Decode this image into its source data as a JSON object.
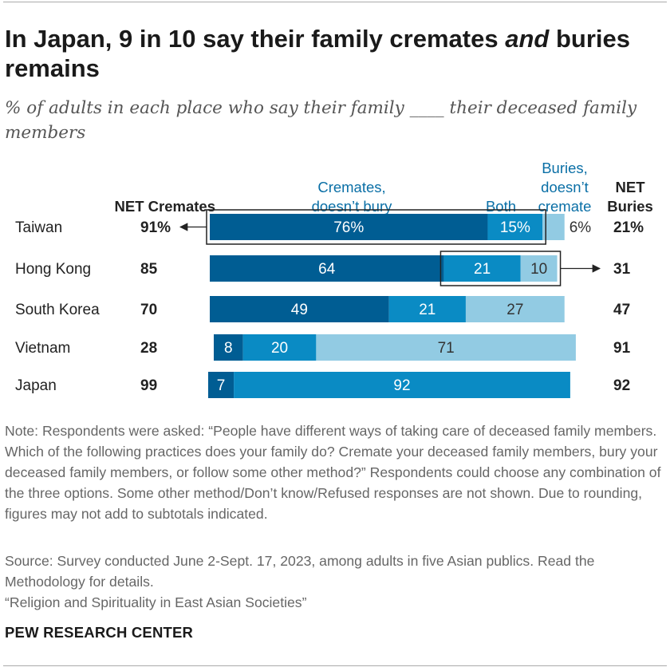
{
  "title_main": "In Japan, 9 in 10 say their family cremates ",
  "title_em": "and",
  "title_rest": " buries remains",
  "subtitle": "% of adults in each place who say their family ____ their deceased family members",
  "note": "Note: Respondents were asked: “People have different ways of taking care of deceased family members. Which of the following practices does your family do? Cremate your deceased family members, bury your deceased family members, or follow some other method?” Respondents could choose any combination of the three options. Some other method/Don’t know/Refused responses are not shown. Due to rounding, figures may not add to subtotals indicated.",
  "source": "Source: Survey conducted June 2-Sept. 17, 2023, among adults in five Asian publics. Read the Methodology for details.",
  "report": "“Religion and Spirituality in East Asian Societies”",
  "org": "PEW RESEARCH CENTER",
  "colors": {
    "cremates_only": "#005d93",
    "both": "#0a8bc4",
    "buries_only": "#92cbe3",
    "text": "#222222"
  },
  "chart_data": {
    "type": "bar",
    "orientation": "horizontal",
    "stacked": true,
    "headers": {
      "net_cremates": "NET Cremates",
      "net_buries": [
        "NET",
        "Buries"
      ],
      "cremates_only": [
        "Cremates,",
        "doesn’t bury"
      ],
      "both": "Both",
      "buries_only": [
        "Buries,",
        "doesn’t",
        "cremate"
      ]
    },
    "categories": [
      "Taiwan",
      "Hong Kong",
      "South Korea",
      "Vietnam",
      "Japan"
    ],
    "series": [
      {
        "name": "Cremates, doesn’t bury",
        "values": [
          76,
          64,
          49,
          8,
          7
        ],
        "labels": [
          "76%",
          "64",
          "49",
          "8",
          "7"
        ]
      },
      {
        "name": "Both",
        "values": [
          15,
          21,
          21,
          20,
          92
        ],
        "labels": [
          "15%",
          "21",
          "21",
          "20",
          "92"
        ]
      },
      {
        "name": "Buries, doesn’t cremate",
        "values": [
          6,
          10,
          27,
          71,
          0
        ],
        "labels": [
          "6%",
          "10",
          "27",
          "71",
          ""
        ]
      }
    ],
    "net_cremates": [
      "91%",
      "85",
      "70",
      "28",
      "99"
    ],
    "net_buries": [
      "21%",
      "31",
      "47",
      "91",
      "92"
    ],
    "xlim": [
      0,
      100
    ]
  }
}
